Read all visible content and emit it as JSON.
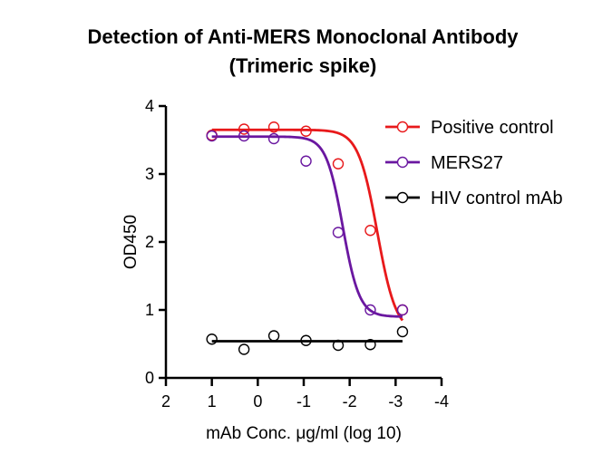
{
  "chart_data": {
    "type": "scatter",
    "title": "Detection of Anti-MERS Monoclonal Antibody",
    "subtitle": "(Trimeric spike)",
    "xlabel": "mAb Conc. μg/ml (log 10)",
    "ylabel": "OD450",
    "xlim": [
      2,
      -4
    ],
    "ylim": [
      0,
      4
    ],
    "x_reversed": true,
    "xticks": [
      2,
      1,
      0,
      -1,
      -2,
      -3,
      -4
    ],
    "xtick_labels": [
      "2",
      "1",
      "0",
      "-1",
      "-2",
      "-3",
      "-4"
    ],
    "yticks": [
      0,
      1,
      2,
      3,
      4
    ],
    "ytick_labels": [
      "0",
      "1",
      "2",
      "3",
      "4"
    ],
    "grid": false,
    "legend_position": "top-right",
    "series": [
      {
        "name": "Positive control",
        "color": "#e8191b",
        "x": [
          1.0,
          0.3,
          -0.35,
          -1.05,
          -1.75,
          -2.45,
          -3.15
        ],
        "y": [
          3.57,
          3.66,
          3.69,
          3.63,
          3.15,
          2.17,
          1.0
        ],
        "fit": {
          "type": "sigmoid",
          "top": 3.65,
          "bottom": 0.65,
          "ec50": -2.6,
          "slope": 2.1
        }
      },
      {
        "name": "MERS27",
        "color": "#6a17a0",
        "x": [
          1.0,
          0.3,
          -0.35,
          -1.05,
          -1.75,
          -2.45,
          -3.15
        ],
        "y": [
          3.56,
          3.56,
          3.52,
          3.19,
          2.14,
          1.0,
          1.0
        ],
        "fit": {
          "type": "sigmoid",
          "top": 3.55,
          "bottom": 0.9,
          "ec50": -1.85,
          "slope": 2.4
        }
      },
      {
        "name": "HIV control mAb",
        "color": "#000000",
        "x": [
          1.0,
          0.3,
          -0.35,
          -1.05,
          -1.75,
          -2.45,
          -3.15
        ],
        "y": [
          0.57,
          0.42,
          0.62,
          0.55,
          0.48,
          0.49,
          0.68
        ],
        "fit": {
          "type": "constant",
          "value": 0.54
        }
      }
    ]
  }
}
